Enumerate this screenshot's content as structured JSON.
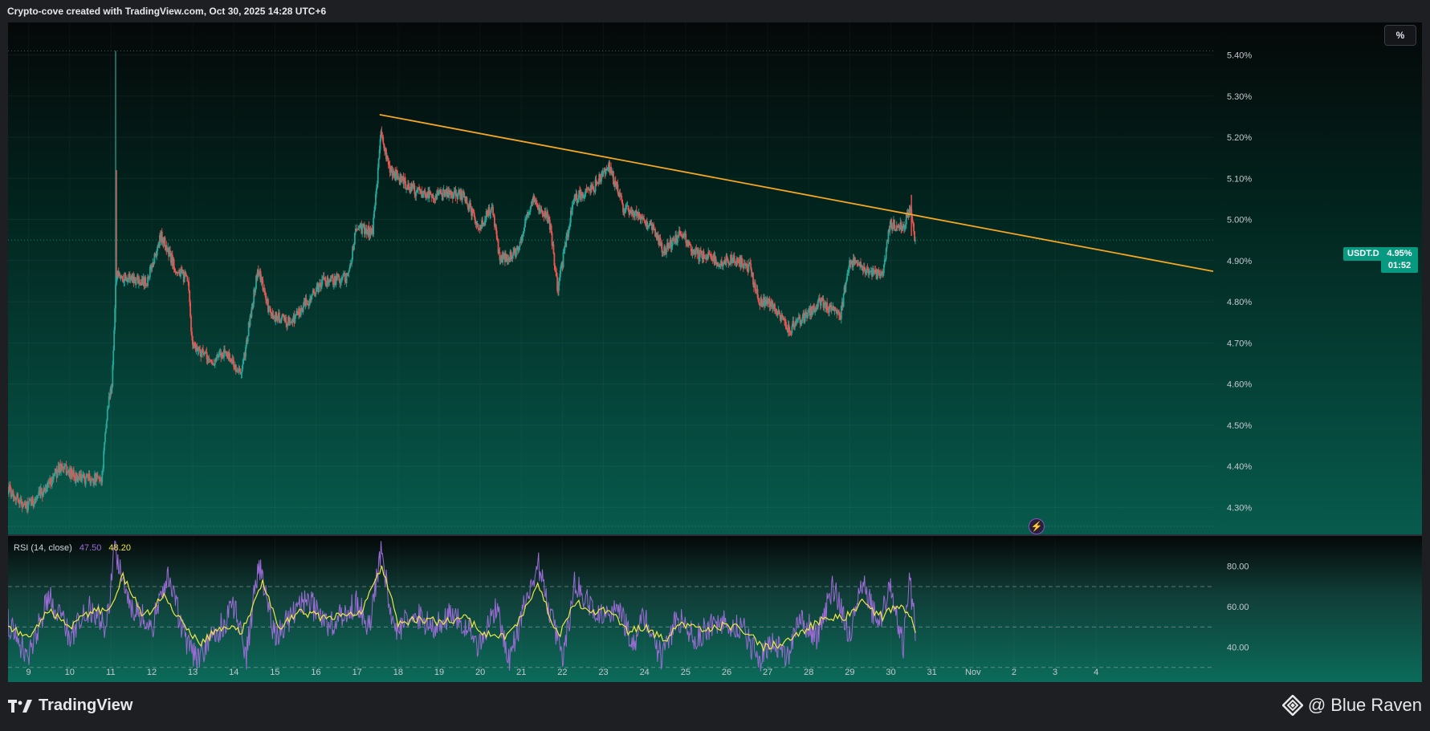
{
  "header": {
    "caption": "Crypto-cove created with TradingView.com, Oct 30, 2025 14:28 UTC+6"
  },
  "toolbar": {
    "percent_label": "%"
  },
  "symbol": {
    "ticker": "USDT.D",
    "last_price": "4.95%",
    "countdown": "01:52"
  },
  "indicator": {
    "name": "RSI (14, close)",
    "rsi_value": "47.50",
    "ma_value": "48.20"
  },
  "footer": {
    "brand": "TradingView",
    "credit": "@ Blue Raven"
  },
  "colors": {
    "up": "#26a69a",
    "down": "#ef5350",
    "trendline": "#f5a623",
    "rsi": "#9b6bd6",
    "rsi_ma": "#f0e64a",
    "accent": "#089981"
  },
  "icons": {
    "brand_logo": "tradingview-logo-icon",
    "credit_logo": "diamond-logo-icon",
    "alert": "lightning-icon"
  },
  "chart_data": [
    {
      "type": "candlestick",
      "symbol": "USDT.D",
      "y_unit": "%",
      "ylim": [
        4.25,
        5.44
      ],
      "y_ticks": [
        "5.40%",
        "5.30%",
        "5.20%",
        "5.10%",
        "5.00%",
        "4.90%",
        "4.80%",
        "4.70%",
        "4.60%",
        "4.50%",
        "4.40%",
        "4.30%"
      ],
      "y_tick_values": [
        5.4,
        5.3,
        5.2,
        5.1,
        5.0,
        4.9,
        4.8,
        4.7,
        4.6,
        4.5,
        4.4,
        4.3
      ],
      "x_ticks": [
        "9",
        "10",
        "11",
        "12",
        "13",
        "14",
        "15",
        "16",
        "17",
        "18",
        "19",
        "20",
        "21",
        "22",
        "23",
        "24",
        "25",
        "26",
        "27",
        "28",
        "29",
        "30",
        "31",
        "Nov",
        "2",
        "3",
        "4"
      ],
      "x_tick_days": [
        9,
        10,
        11,
        12,
        13,
        14,
        15,
        16,
        17,
        18,
        19,
        20,
        21,
        22,
        23,
        24,
        25,
        26,
        27,
        28,
        29,
        30,
        31,
        32,
        33,
        34,
        35
      ],
      "x_range_days": [
        8.5,
        37.85
      ],
      "last_price": 4.95,
      "high_marker": 5.41,
      "path_points": [
        {
          "d": 8.5,
          "p": 4.35
        },
        {
          "d": 8.95,
          "p": 4.3
        },
        {
          "d": 9.3,
          "p": 4.33
        },
        {
          "d": 9.8,
          "p": 4.4
        },
        {
          "d": 10.2,
          "p": 4.37
        },
        {
          "d": 10.8,
          "p": 4.37
        },
        {
          "d": 10.95,
          "p": 4.55
        },
        {
          "d": 11.05,
          "p": 4.6
        },
        {
          "d": 11.15,
          "p": 4.86
        },
        {
          "d": 11.5,
          "p": 4.86
        },
        {
          "d": 11.9,
          "p": 4.85
        },
        {
          "d": 12.25,
          "p": 4.96
        },
        {
          "d": 12.6,
          "p": 4.88
        },
        {
          "d": 12.9,
          "p": 4.85
        },
        {
          "d": 13.0,
          "p": 4.7
        },
        {
          "d": 13.5,
          "p": 4.65
        },
        {
          "d": 13.8,
          "p": 4.68
        },
        {
          "d": 14.2,
          "p": 4.62
        },
        {
          "d": 14.4,
          "p": 4.75
        },
        {
          "d": 14.6,
          "p": 4.88
        },
        {
          "d": 14.9,
          "p": 4.77
        },
        {
          "d": 15.4,
          "p": 4.75
        },
        {
          "d": 15.8,
          "p": 4.8
        },
        {
          "d": 16.2,
          "p": 4.85
        },
        {
          "d": 16.8,
          "p": 4.86
        },
        {
          "d": 17.0,
          "p": 4.98
        },
        {
          "d": 17.4,
          "p": 4.97
        },
        {
          "d": 17.6,
          "p": 5.21
        },
        {
          "d": 17.8,
          "p": 5.12
        },
        {
          "d": 18.4,
          "p": 5.07
        },
        {
          "d": 18.9,
          "p": 5.06
        },
        {
          "d": 19.6,
          "p": 5.06
        },
        {
          "d": 20.0,
          "p": 4.98
        },
        {
          "d": 20.3,
          "p": 5.03
        },
        {
          "d": 20.5,
          "p": 4.9
        },
        {
          "d": 20.9,
          "p": 4.92
        },
        {
          "d": 21.3,
          "p": 5.05
        },
        {
          "d": 21.7,
          "p": 5.0
        },
        {
          "d": 21.9,
          "p": 4.83
        },
        {
          "d": 22.3,
          "p": 5.05
        },
        {
          "d": 22.8,
          "p": 5.08
        },
        {
          "d": 23.15,
          "p": 5.13
        },
        {
          "d": 23.5,
          "p": 5.03
        },
        {
          "d": 23.8,
          "p": 5.01
        },
        {
          "d": 24.2,
          "p": 4.98
        },
        {
          "d": 24.5,
          "p": 4.92
        },
        {
          "d": 24.9,
          "p": 4.97
        },
        {
          "d": 25.2,
          "p": 4.92
        },
        {
          "d": 25.8,
          "p": 4.9
        },
        {
          "d": 26.3,
          "p": 4.9
        },
        {
          "d": 26.6,
          "p": 4.88
        },
        {
          "d": 26.8,
          "p": 4.8
        },
        {
          "d": 27.1,
          "p": 4.8
        },
        {
          "d": 27.5,
          "p": 4.73
        },
        {
          "d": 27.9,
          "p": 4.76
        },
        {
          "d": 28.3,
          "p": 4.8
        },
        {
          "d": 28.8,
          "p": 4.77
        },
        {
          "d": 29.0,
          "p": 4.9
        },
        {
          "d": 29.4,
          "p": 4.88
        },
        {
          "d": 29.8,
          "p": 4.86
        },
        {
          "d": 30.0,
          "p": 4.99
        },
        {
          "d": 30.3,
          "p": 4.98
        },
        {
          "d": 30.5,
          "p": 5.03
        },
        {
          "d": 30.6,
          "p": 4.95
        }
      ],
      "trendline": {
        "from": {
          "d": 17.55,
          "p": 5.255
        },
        "to": {
          "d": 37.85,
          "p": 4.874
        }
      }
    },
    {
      "type": "line",
      "name": "RSI (14, close)",
      "ylim": [
        27.5,
        93
      ],
      "y_ticks": [
        "80.00",
        "60.00",
        "40.00"
      ],
      "y_tick_values": [
        80,
        60,
        40
      ],
      "bands": [
        70,
        50,
        30
      ],
      "series": [
        {
          "name": "RSI",
          "last": 47.5,
          "points": [
            {
              "d": 8.5,
              "p": 52
            },
            {
              "d": 9.0,
              "p": 35
            },
            {
              "d": 9.5,
              "p": 65
            },
            {
              "d": 10.0,
              "p": 45
            },
            {
              "d": 10.5,
              "p": 60
            },
            {
              "d": 10.9,
              "p": 50
            },
            {
              "d": 11.1,
              "p": 88
            },
            {
              "d": 11.5,
              "p": 60
            },
            {
              "d": 12.0,
              "p": 50
            },
            {
              "d": 12.4,
              "p": 75
            },
            {
              "d": 12.8,
              "p": 45
            },
            {
              "d": 13.1,
              "p": 33
            },
            {
              "d": 13.5,
              "p": 45
            },
            {
              "d": 14.0,
              "p": 60
            },
            {
              "d": 14.3,
              "p": 35
            },
            {
              "d": 14.6,
              "p": 82
            },
            {
              "d": 15.0,
              "p": 45
            },
            {
              "d": 15.4,
              "p": 55
            },
            {
              "d": 15.8,
              "p": 65
            },
            {
              "d": 16.2,
              "p": 50
            },
            {
              "d": 16.6,
              "p": 55
            },
            {
              "d": 17.0,
              "p": 62
            },
            {
              "d": 17.3,
              "p": 50
            },
            {
              "d": 17.6,
              "p": 90
            },
            {
              "d": 17.9,
              "p": 45
            },
            {
              "d": 18.3,
              "p": 58
            },
            {
              "d": 18.8,
              "p": 50
            },
            {
              "d": 19.2,
              "p": 55
            },
            {
              "d": 19.6,
              "p": 52
            },
            {
              "d": 20.0,
              "p": 40
            },
            {
              "d": 20.4,
              "p": 62
            },
            {
              "d": 20.7,
              "p": 32
            },
            {
              "d": 21.0,
              "p": 55
            },
            {
              "d": 21.4,
              "p": 82
            },
            {
              "d": 21.8,
              "p": 50
            },
            {
              "d": 22.0,
              "p": 32
            },
            {
              "d": 22.3,
              "p": 72
            },
            {
              "d": 22.7,
              "p": 60
            },
            {
              "d": 23.0,
              "p": 58
            },
            {
              "d": 23.4,
              "p": 60
            },
            {
              "d": 23.7,
              "p": 40
            },
            {
              "d": 24.0,
              "p": 55
            },
            {
              "d": 24.4,
              "p": 35
            },
            {
              "d": 24.8,
              "p": 55
            },
            {
              "d": 25.2,
              "p": 45
            },
            {
              "d": 25.6,
              "p": 50
            },
            {
              "d": 26.0,
              "p": 52
            },
            {
              "d": 26.4,
              "p": 50
            },
            {
              "d": 26.8,
              "p": 32
            },
            {
              "d": 27.1,
              "p": 45
            },
            {
              "d": 27.5,
              "p": 35
            },
            {
              "d": 27.8,
              "p": 55
            },
            {
              "d": 28.2,
              "p": 45
            },
            {
              "d": 28.6,
              "p": 70
            },
            {
              "d": 29.0,
              "p": 45
            },
            {
              "d": 29.3,
              "p": 72
            },
            {
              "d": 29.7,
              "p": 50
            },
            {
              "d": 30.0,
              "p": 70
            },
            {
              "d": 30.3,
              "p": 40
            },
            {
              "d": 30.45,
              "p": 75
            },
            {
              "d": 30.6,
              "p": 47.5
            }
          ]
        },
        {
          "name": "RSI-based MA",
          "last": 48.2,
          "points": [
            {
              "d": 8.5,
              "p": 50
            },
            {
              "d": 9.0,
              "p": 45
            },
            {
              "d": 9.5,
              "p": 58
            },
            {
              "d": 10.0,
              "p": 50
            },
            {
              "d": 10.5,
              "p": 57
            },
            {
              "d": 11.0,
              "p": 60
            },
            {
              "d": 11.3,
              "p": 75
            },
            {
              "d": 11.8,
              "p": 55
            },
            {
              "d": 12.3,
              "p": 65
            },
            {
              "d": 12.8,
              "p": 50
            },
            {
              "d": 13.2,
              "p": 42
            },
            {
              "d": 13.7,
              "p": 50
            },
            {
              "d": 14.2,
              "p": 48
            },
            {
              "d": 14.7,
              "p": 72
            },
            {
              "d": 15.1,
              "p": 50
            },
            {
              "d": 15.6,
              "p": 58
            },
            {
              "d": 16.1,
              "p": 55
            },
            {
              "d": 16.6,
              "p": 55
            },
            {
              "d": 17.1,
              "p": 58
            },
            {
              "d": 17.6,
              "p": 80
            },
            {
              "d": 18.0,
              "p": 52
            },
            {
              "d": 18.6,
              "p": 54
            },
            {
              "d": 19.1,
              "p": 52
            },
            {
              "d": 19.6,
              "p": 55
            },
            {
              "d": 20.1,
              "p": 47
            },
            {
              "d": 20.6,
              "p": 45
            },
            {
              "d": 21.0,
              "p": 55
            },
            {
              "d": 21.4,
              "p": 72
            },
            {
              "d": 21.9,
              "p": 45
            },
            {
              "d": 22.3,
              "p": 62
            },
            {
              "d": 22.8,
              "p": 58
            },
            {
              "d": 23.2,
              "p": 58
            },
            {
              "d": 23.6,
              "p": 48
            },
            {
              "d": 24.0,
              "p": 50
            },
            {
              "d": 24.5,
              "p": 43
            },
            {
              "d": 24.9,
              "p": 52
            },
            {
              "d": 25.4,
              "p": 48
            },
            {
              "d": 26.0,
              "p": 51
            },
            {
              "d": 26.5,
              "p": 48
            },
            {
              "d": 26.9,
              "p": 40
            },
            {
              "d": 27.4,
              "p": 42
            },
            {
              "d": 27.9,
              "p": 48
            },
            {
              "d": 28.4,
              "p": 55
            },
            {
              "d": 28.9,
              "p": 55
            },
            {
              "d": 29.3,
              "p": 62
            },
            {
              "d": 29.8,
              "p": 55
            },
            {
              "d": 30.1,
              "p": 60
            },
            {
              "d": 30.4,
              "p": 58
            },
            {
              "d": 30.6,
              "p": 48.2
            }
          ]
        }
      ]
    }
  ]
}
